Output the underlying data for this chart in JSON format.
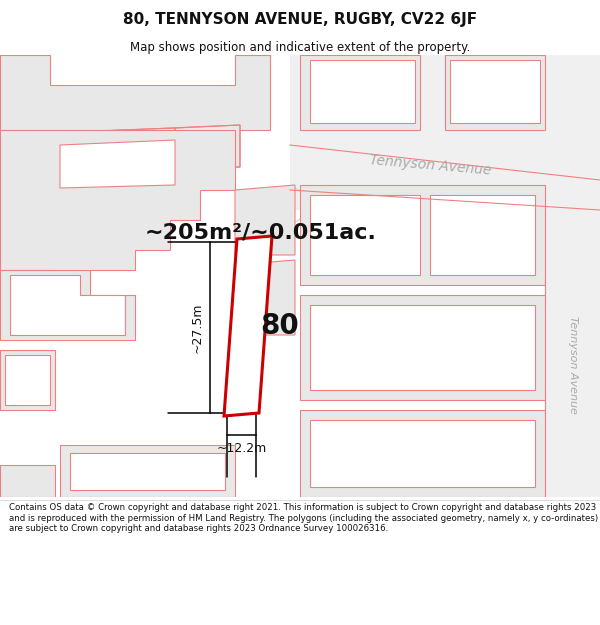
{
  "title": "80, TENNYSON AVENUE, RUGBY, CV22 6JF",
  "subtitle": "Map shows position and indicative extent of the property.",
  "footer": "Contains OS data © Crown copyright and database right 2021. This information is subject to Crown copyright and database rights 2023 and is reproduced with the permission of HM Land Registry. The polygons (including the associated geometry, namely x, y co-ordinates) are subject to Crown copyright and database rights 2023 Ordnance Survey 100026316.",
  "area_text": "~205m²/~0.051ac.",
  "number_label": "80",
  "dim_width": "~12.2m",
  "dim_height": "~27.5m",
  "street_label_h": "Tennyson Avenue",
  "street_label_v": "Tennyson Avenue",
  "bg_color": "#ffffff",
  "pink": "#f08080",
  "red": "#cc0000",
  "gray_fill": "#e8e8e8",
  "gray_text": "#aaaaaa",
  "dark_text": "#111111",
  "title_fontsize": 11,
  "subtitle_fontsize": 8.5,
  "footer_fontsize": 6.2,
  "area_fontsize": 16,
  "number_fontsize": 20,
  "dim_fontsize": 9,
  "street_fontsize": 10
}
